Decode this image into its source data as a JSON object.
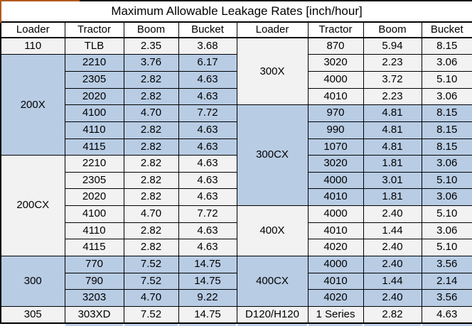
{
  "title": "Maximum Allowable Leakage Rates [inch/hour]",
  "columns": [
    "Loader",
    "Tractor",
    "Boom",
    "Bucket"
  ],
  "colors": {
    "group_blue": "#b8cce4",
    "group_light": "#f2f2f2",
    "header_bg": "#ffffff",
    "border": "#000000",
    "title_accent_orange": "#b4591c"
  },
  "left_groups": [
    {
      "loader": "110",
      "bg": "light",
      "rows": [
        [
          "TLB",
          "2.35",
          "3.68"
        ]
      ]
    },
    {
      "loader": "200X",
      "bg": "blue",
      "rows": [
        [
          "2210",
          "3.76",
          "6.17"
        ],
        [
          "2305",
          "2.82",
          "4.63"
        ],
        [
          "2020",
          "2.82",
          "4.63"
        ],
        [
          "4100",
          "4.70",
          "7.72"
        ],
        [
          "4110",
          "2.82",
          "4.63"
        ],
        [
          "4115",
          "2.82",
          "4.63"
        ]
      ]
    },
    {
      "loader": "200CX",
      "bg": "light",
      "rows": [
        [
          "2210",
          "2.82",
          "4.63"
        ],
        [
          "2305",
          "2.82",
          "4.63"
        ],
        [
          "2020",
          "2.82",
          "4.63"
        ],
        [
          "4100",
          "4.70",
          "7.72"
        ],
        [
          "4110",
          "2.82",
          "4.63"
        ],
        [
          "4115",
          "2.82",
          "4.63"
        ]
      ]
    },
    {
      "loader": "300",
      "bg": "blue",
      "rows": [
        [
          "770",
          "7.52",
          "14.75"
        ],
        [
          "790",
          "7.52",
          "14.75"
        ],
        [
          "3203",
          "4.70",
          "9.22"
        ]
      ]
    },
    {
      "loader": "305",
      "bg": "light",
      "rows": [
        [
          "303XD",
          "7.52",
          "14.75"
        ]
      ]
    }
  ],
  "right_groups": [
    {
      "loader": "300X",
      "bg": "light",
      "rows": [
        [
          "870",
          "5.94",
          "8.15"
        ],
        [
          "3020",
          "2.23",
          "3.06"
        ],
        [
          "4000",
          "3.72",
          "5.10"
        ],
        [
          "4010",
          "2.23",
          "3.06"
        ]
      ]
    },
    {
      "loader": "300CX",
      "bg": "blue",
      "rows": [
        [
          "970",
          "4.81",
          "8.15"
        ],
        [
          "990",
          "4.81",
          "8.15"
        ],
        [
          "1070",
          "4.81",
          "8.15"
        ],
        [
          "3020",
          "1.81",
          "3.06"
        ],
        [
          "4000",
          "3.01",
          "5.10"
        ],
        [
          "4010",
          "1.81",
          "3.06"
        ]
      ]
    },
    {
      "loader": "400X",
      "bg": "light",
      "rows": [
        [
          "4000",
          "2.40",
          "5.10"
        ],
        [
          "4010",
          "1.44",
          "3.06"
        ],
        [
          "4020",
          "2.40",
          "5.10"
        ]
      ]
    },
    {
      "loader": "400CX",
      "bg": "blue",
      "rows": [
        [
          "4000",
          "2.40",
          "3.56"
        ],
        [
          "4010",
          "1.44",
          "2.14"
        ],
        [
          "4020",
          "2.40",
          "3.56"
        ]
      ]
    },
    {
      "loader": "D120/H120",
      "bg": "light",
      "rows": [
        [
          "1 Series",
          "2.82",
          "4.63"
        ]
      ]
    }
  ]
}
